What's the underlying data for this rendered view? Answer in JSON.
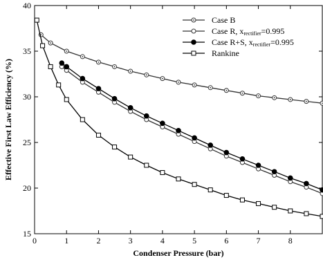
{
  "chart_data": {
    "type": "line",
    "title": "",
    "xlabel": "Condenser Pressure (bar)",
    "ylabel": "Effective First Law Efficiency (%)",
    "xlim": [
      0,
      9
    ],
    "ylim": [
      15,
      40
    ],
    "xticks": [
      0,
      1,
      2,
      3,
      4,
      5,
      6,
      7,
      8
    ],
    "yticks": [
      15,
      20,
      25,
      30,
      35,
      40
    ],
    "grid": false,
    "legend_position": "top-right",
    "series": [
      {
        "name": "Case B",
        "marker": "dotted-circle",
        "color": "#333333",
        "x": [
          0.2,
          0.5,
          1,
          1.5,
          2,
          2.5,
          3,
          3.5,
          4,
          4.5,
          5,
          5.5,
          6,
          6.5,
          7,
          7.5,
          8,
          8.5,
          9
        ],
        "y": [
          36.8,
          35.9,
          35.0,
          34.4,
          33.8,
          33.3,
          32.8,
          32.4,
          32.0,
          31.6,
          31.3,
          31.0,
          30.7,
          30.4,
          30.1,
          29.9,
          29.7,
          29.5,
          29.3
        ]
      },
      {
        "name": "Case R, x_rectifier=0.995",
        "name_main": "Case R, x",
        "name_sub": "rectifier",
        "name_tail": "=0.995",
        "marker": "open-circle",
        "color": "#333333",
        "x": [
          0.85,
          1,
          1.5,
          2,
          2.5,
          3,
          3.5,
          4,
          4.5,
          5,
          5.5,
          6,
          6.5,
          7,
          7.5,
          8,
          8.5,
          9
        ],
        "y": [
          33.3,
          32.9,
          31.6,
          30.5,
          29.4,
          28.4,
          27.5,
          26.7,
          25.9,
          25.1,
          24.3,
          23.5,
          22.8,
          22.1,
          21.4,
          20.7,
          20.1,
          19.4
        ]
      },
      {
        "name": "Case R+S, x_rectifier=0.995",
        "name_main": "Case R+S, x",
        "name_sub": "rectifier",
        "name_tail": "=0.995",
        "marker": "filled-circle",
        "color": "#000000",
        "x": [
          0.85,
          1,
          1.5,
          2,
          2.5,
          3,
          3.5,
          4,
          4.5,
          5,
          5.5,
          6,
          6.5,
          7,
          7.5,
          8,
          8.5,
          9
        ],
        "y": [
          33.7,
          33.3,
          32.0,
          30.9,
          29.8,
          28.8,
          27.9,
          27.1,
          26.3,
          25.5,
          24.7,
          23.9,
          23.2,
          22.5,
          21.8,
          21.1,
          20.5,
          19.8
        ]
      },
      {
        "name": "Rankine",
        "marker": "open-square",
        "color": "#000000",
        "x": [
          0.07,
          0.25,
          0.5,
          0.75,
          1,
          1.5,
          2,
          2.5,
          3,
          3.5,
          4,
          4.5,
          5,
          5.5,
          6,
          6.5,
          7,
          7.5,
          8,
          8.5,
          9
        ],
        "y": [
          38.4,
          35.6,
          33.3,
          31.3,
          29.7,
          27.5,
          25.8,
          24.5,
          23.4,
          22.5,
          21.7,
          21.0,
          20.4,
          19.8,
          19.2,
          18.7,
          18.3,
          17.9,
          17.5,
          17.2,
          16.9
        ]
      }
    ]
  }
}
